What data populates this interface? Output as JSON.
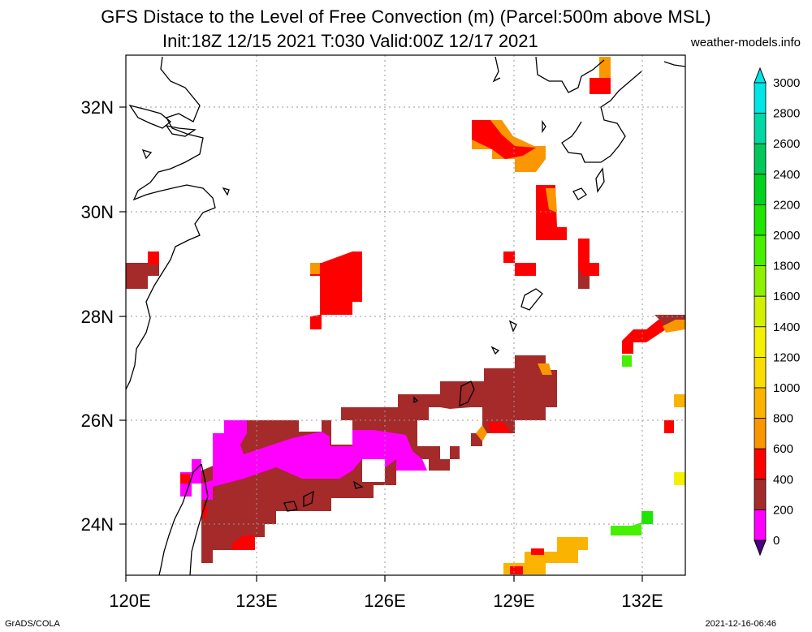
{
  "title": {
    "line1": "GFS Distace to the Level of Free Convection (m) (Parcel:500m above MSL)",
    "line2": "Init:18Z 12/15 2021 T:030 Valid:00Z 12/17 2021",
    "credit": "weather-models.info"
  },
  "footer": {
    "left": "GrADS/COLA",
    "right": "2021-12-16-06:46"
  },
  "axes": {
    "lon_labels": [
      "120E",
      "123E",
      "126E",
      "129E",
      "132E"
    ],
    "lat_labels": [
      "32N",
      "30N",
      "28N",
      "26N",
      "24N"
    ],
    "lon_range": [
      120,
      133
    ],
    "lat_range": [
      23,
      33
    ]
  },
  "colorbar": {
    "labels": [
      "3000",
      "2800",
      "2600",
      "2400",
      "2200",
      "2000",
      "1800",
      "1600",
      "1400",
      "1200",
      "1000",
      "800",
      "600",
      "400",
      "200",
      "0"
    ],
    "colors": [
      "#00e5e5",
      "#00d7a4",
      "#00c85a",
      "#00d21e",
      "#1ee600",
      "#46f000",
      "#8cf000",
      "#d2f000",
      "#f5f000",
      "#fadc00",
      "#fab400",
      "#fa9600",
      "#ff0000",
      "#a52a2a",
      "#ff00ff",
      "#4b0082"
    ]
  },
  "colors": {
    "brown": "#a52a2a",
    "magenta": "#ff00ff",
    "red": "#ff0000",
    "orange": "#fa9600",
    "gold": "#fab400",
    "lime": "#46f000",
    "purple": "#4b0082"
  }
}
